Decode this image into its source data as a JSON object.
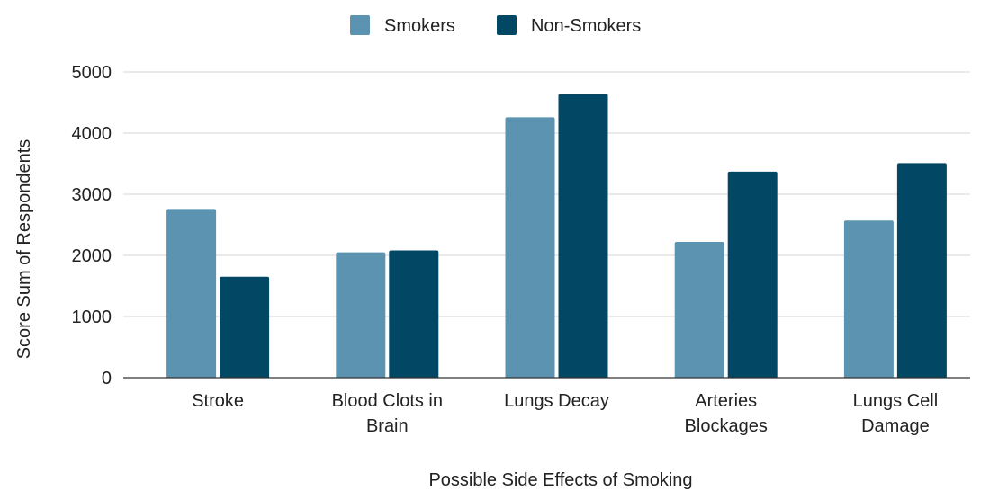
{
  "chart_data": {
    "type": "bar",
    "title": "",
    "xlabel": "Possible Side Effects of Smoking",
    "ylabel": "Score Sum of Respondents",
    "categories": [
      [
        "Stroke"
      ],
      [
        "Blood Clots in",
        "Brain"
      ],
      [
        "Lungs Decay"
      ],
      [
        "Arteries",
        "Blockages"
      ],
      [
        "Lungs Cell",
        "Damage"
      ]
    ],
    "series": [
      {
        "name": "Smokers",
        "color": "#5b93b0",
        "values": [
          2760,
          2050,
          4260,
          2220,
          2570
        ]
      },
      {
        "name": "Non-Smokers",
        "color": "#024763",
        "values": [
          1650,
          2080,
          4640,
          3370,
          3510
        ]
      }
    ],
    "ylim": [
      0,
      5000
    ],
    "yticks": [
      "0",
      "1000",
      "2000",
      "3000",
      "4000",
      "5000"
    ],
    "grid": true,
    "legend_position": "top-center"
  }
}
